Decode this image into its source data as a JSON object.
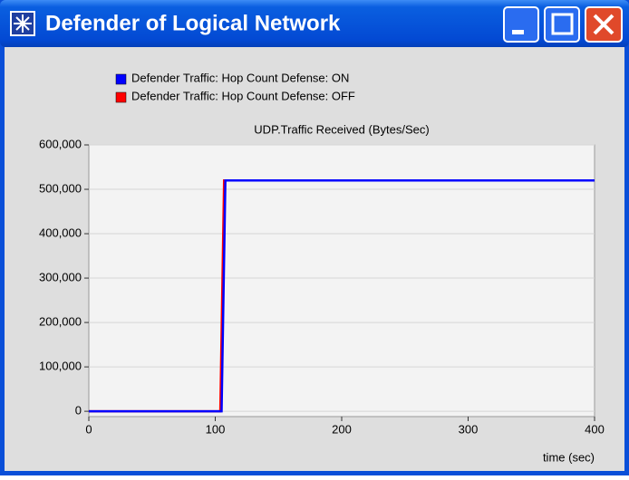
{
  "window": {
    "title": "Defender of Logical Network"
  },
  "chart_data": {
    "type": "line",
    "title": "UDP.Traffic Received (Bytes/Sec)",
    "x_label": "time (sec)",
    "x": [
      0,
      105,
      108,
      400
    ],
    "series": [
      {
        "name": "Defender Traffic: Hop Count Defense: ON",
        "color": "#0000ff",
        "x": [
          0,
          105,
          108,
          400
        ],
        "values": [
          0,
          0,
          520000,
          520000
        ]
      },
      {
        "name": "Defender Traffic: Hop Count Defense: OFF",
        "color": "#ff0000",
        "x": [
          0,
          104,
          107,
          400
        ],
        "values": [
          0,
          0,
          520000,
          520000
        ]
      }
    ],
    "xlim": [
      0,
      400
    ],
    "xticks": [
      0,
      100,
      200,
      300,
      400
    ],
    "ylim": [
      -12000,
      600000
    ],
    "yticks": [
      0,
      {
        "value": 100000,
        "label": "100,000"
      },
      {
        "value": 200000,
        "label": "200,000"
      },
      {
        "value": 300000,
        "label": "300,000"
      },
      {
        "value": 400000,
        "label": "400,000"
      },
      {
        "value": 500000,
        "label": "500,000"
      },
      {
        "value": 600000,
        "label": "600,000"
      }
    ],
    "grid": true
  }
}
